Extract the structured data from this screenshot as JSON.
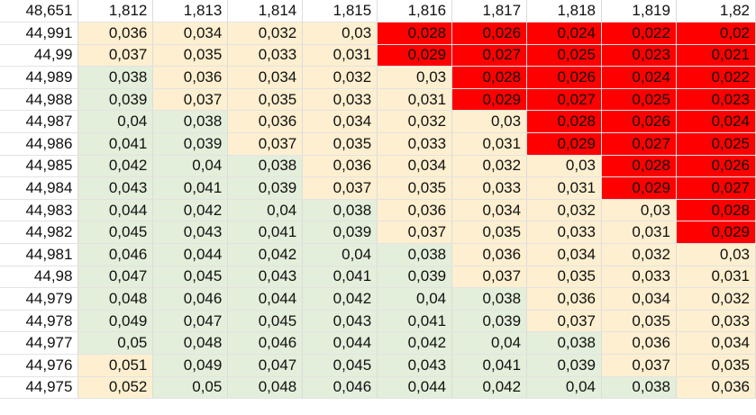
{
  "palette": {
    "green": "#e3eedb",
    "yellow": "#fdefcf",
    "red": "#fe0000",
    "corner": "#9fd08a"
  },
  "corner_value": "48,651",
  "col_headers": [
    "1,812",
    "1,813",
    "1,814",
    "1,815",
    "1,816",
    "1,817",
    "1,818",
    "1,819",
    "1,82"
  ],
  "rows": [
    {
      "label": "44,991",
      "cells": [
        {
          "v": "0,036",
          "c": "yellow"
        },
        {
          "v": "0,034",
          "c": "yellow"
        },
        {
          "v": "0,032",
          "c": "yellow"
        },
        {
          "v": "0,03",
          "c": "yellow"
        },
        {
          "v": "0,028",
          "c": "red"
        },
        {
          "v": "0,026",
          "c": "red"
        },
        {
          "v": "0,024",
          "c": "red"
        },
        {
          "v": "0,022",
          "c": "red"
        },
        {
          "v": "0,02",
          "c": "red"
        }
      ]
    },
    {
      "label": "44,99",
      "cells": [
        {
          "v": "0,037",
          "c": "yellow"
        },
        {
          "v": "0,035",
          "c": "yellow"
        },
        {
          "v": "0,033",
          "c": "yellow"
        },
        {
          "v": "0,031",
          "c": "yellow"
        },
        {
          "v": "0,029",
          "c": "red"
        },
        {
          "v": "0,027",
          "c": "red"
        },
        {
          "v": "0,025",
          "c": "red"
        },
        {
          "v": "0,023",
          "c": "red"
        },
        {
          "v": "0,021",
          "c": "red"
        }
      ]
    },
    {
      "label": "44,989",
      "cells": [
        {
          "v": "0,038",
          "c": "green"
        },
        {
          "v": "0,036",
          "c": "yellow"
        },
        {
          "v": "0,034",
          "c": "yellow"
        },
        {
          "v": "0,032",
          "c": "yellow"
        },
        {
          "v": "0,03",
          "c": "yellow"
        },
        {
          "v": "0,028",
          "c": "red"
        },
        {
          "v": "0,026",
          "c": "red"
        },
        {
          "v": "0,024",
          "c": "red"
        },
        {
          "v": "0,022",
          "c": "red"
        }
      ]
    },
    {
      "label": "44,988",
      "cells": [
        {
          "v": "0,039",
          "c": "green"
        },
        {
          "v": "0,037",
          "c": "yellow"
        },
        {
          "v": "0,035",
          "c": "yellow"
        },
        {
          "v": "0,033",
          "c": "yellow"
        },
        {
          "v": "0,031",
          "c": "yellow"
        },
        {
          "v": "0,029",
          "c": "red"
        },
        {
          "v": "0,027",
          "c": "red"
        },
        {
          "v": "0,025",
          "c": "red"
        },
        {
          "v": "0,023",
          "c": "red"
        }
      ]
    },
    {
      "label": "44,987",
      "cells": [
        {
          "v": "0,04",
          "c": "green"
        },
        {
          "v": "0,038",
          "c": "green"
        },
        {
          "v": "0,036",
          "c": "yellow"
        },
        {
          "v": "0,034",
          "c": "yellow"
        },
        {
          "v": "0,032",
          "c": "yellow"
        },
        {
          "v": "0,03",
          "c": "yellow"
        },
        {
          "v": "0,028",
          "c": "red"
        },
        {
          "v": "0,026",
          "c": "red"
        },
        {
          "v": "0,024",
          "c": "red"
        }
      ]
    },
    {
      "label": "44,986",
      "cells": [
        {
          "v": "0,041",
          "c": "green"
        },
        {
          "v": "0,039",
          "c": "green"
        },
        {
          "v": "0,037",
          "c": "yellow"
        },
        {
          "v": "0,035",
          "c": "yellow"
        },
        {
          "v": "0,033",
          "c": "yellow"
        },
        {
          "v": "0,031",
          "c": "yellow"
        },
        {
          "v": "0,029",
          "c": "red"
        },
        {
          "v": "0,027",
          "c": "red"
        },
        {
          "v": "0,025",
          "c": "red"
        }
      ]
    },
    {
      "label": "44,985",
      "cells": [
        {
          "v": "0,042",
          "c": "green"
        },
        {
          "v": "0,04",
          "c": "green"
        },
        {
          "v": "0,038",
          "c": "green"
        },
        {
          "v": "0,036",
          "c": "yellow"
        },
        {
          "v": "0,034",
          "c": "yellow"
        },
        {
          "v": "0,032",
          "c": "yellow"
        },
        {
          "v": "0,03",
          "c": "yellow"
        },
        {
          "v": "0,028",
          "c": "red"
        },
        {
          "v": "0,026",
          "c": "red"
        }
      ]
    },
    {
      "label": "44,984",
      "cells": [
        {
          "v": "0,043",
          "c": "green"
        },
        {
          "v": "0,041",
          "c": "green"
        },
        {
          "v": "0,039",
          "c": "green"
        },
        {
          "v": "0,037",
          "c": "yellow"
        },
        {
          "v": "0,035",
          "c": "yellow"
        },
        {
          "v": "0,033",
          "c": "yellow"
        },
        {
          "v": "0,031",
          "c": "yellow"
        },
        {
          "v": "0,029",
          "c": "red"
        },
        {
          "v": "0,027",
          "c": "red"
        }
      ]
    },
    {
      "label": "44,983",
      "cells": [
        {
          "v": "0,044",
          "c": "green"
        },
        {
          "v": "0,042",
          "c": "green"
        },
        {
          "v": "0,04",
          "c": "green"
        },
        {
          "v": "0,038",
          "c": "green"
        },
        {
          "v": "0,036",
          "c": "yellow"
        },
        {
          "v": "0,034",
          "c": "yellow"
        },
        {
          "v": "0,032",
          "c": "yellow"
        },
        {
          "v": "0,03",
          "c": "yellow"
        },
        {
          "v": "0,028",
          "c": "red"
        }
      ]
    },
    {
      "label": "44,982",
      "cells": [
        {
          "v": "0,045",
          "c": "green"
        },
        {
          "v": "0,043",
          "c": "green"
        },
        {
          "v": "0,041",
          "c": "green"
        },
        {
          "v": "0,039",
          "c": "green"
        },
        {
          "v": "0,037",
          "c": "yellow"
        },
        {
          "v": "0,035",
          "c": "yellow"
        },
        {
          "v": "0,033",
          "c": "yellow"
        },
        {
          "v": "0,031",
          "c": "yellow"
        },
        {
          "v": "0,029",
          "c": "red"
        }
      ]
    },
    {
      "label": "44,981",
      "cells": [
        {
          "v": "0,046",
          "c": "green"
        },
        {
          "v": "0,044",
          "c": "green"
        },
        {
          "v": "0,042",
          "c": "green"
        },
        {
          "v": "0,04",
          "c": "green"
        },
        {
          "v": "0,038",
          "c": "green"
        },
        {
          "v": "0,036",
          "c": "yellow"
        },
        {
          "v": "0,034",
          "c": "yellow"
        },
        {
          "v": "0,032",
          "c": "yellow"
        },
        {
          "v": "0,03",
          "c": "yellow"
        }
      ]
    },
    {
      "label": "44,98",
      "cells": [
        {
          "v": "0,047",
          "c": "green"
        },
        {
          "v": "0,045",
          "c": "green"
        },
        {
          "v": "0,043",
          "c": "green"
        },
        {
          "v": "0,041",
          "c": "green"
        },
        {
          "v": "0,039",
          "c": "green"
        },
        {
          "v": "0,037",
          "c": "yellow"
        },
        {
          "v": "0,035",
          "c": "yellow"
        },
        {
          "v": "0,033",
          "c": "yellow"
        },
        {
          "v": "0,031",
          "c": "yellow"
        }
      ]
    },
    {
      "label": "44,979",
      "cells": [
        {
          "v": "0,048",
          "c": "green"
        },
        {
          "v": "0,046",
          "c": "green"
        },
        {
          "v": "0,044",
          "c": "green"
        },
        {
          "v": "0,042",
          "c": "green"
        },
        {
          "v": "0,04",
          "c": "green"
        },
        {
          "v": "0,038",
          "c": "green"
        },
        {
          "v": "0,036",
          "c": "yellow"
        },
        {
          "v": "0,034",
          "c": "yellow"
        },
        {
          "v": "0,032",
          "c": "yellow"
        }
      ]
    },
    {
      "label": "44,978",
      "cells": [
        {
          "v": "0,049",
          "c": "green"
        },
        {
          "v": "0,047",
          "c": "green"
        },
        {
          "v": "0,045",
          "c": "green"
        },
        {
          "v": "0,043",
          "c": "green"
        },
        {
          "v": "0,041",
          "c": "green"
        },
        {
          "v": "0,039",
          "c": "green"
        },
        {
          "v": "0,037",
          "c": "yellow"
        },
        {
          "v": "0,035",
          "c": "yellow"
        },
        {
          "v": "0,033",
          "c": "yellow"
        }
      ]
    },
    {
      "label": "44,977",
      "cells": [
        {
          "v": "0,05",
          "c": "green"
        },
        {
          "v": "0,048",
          "c": "green"
        },
        {
          "v": "0,046",
          "c": "green"
        },
        {
          "v": "0,044",
          "c": "green"
        },
        {
          "v": "0,042",
          "c": "green"
        },
        {
          "v": "0,04",
          "c": "green"
        },
        {
          "v": "0,038",
          "c": "green"
        },
        {
          "v": "0,036",
          "c": "yellow"
        },
        {
          "v": "0,034",
          "c": "yellow"
        }
      ]
    },
    {
      "label": "44,976",
      "cells": [
        {
          "v": "0,051",
          "c": "yellow"
        },
        {
          "v": "0,049",
          "c": "green"
        },
        {
          "v": "0,047",
          "c": "green"
        },
        {
          "v": "0,045",
          "c": "green"
        },
        {
          "v": "0,043",
          "c": "green"
        },
        {
          "v": "0,041",
          "c": "green"
        },
        {
          "v": "0,039",
          "c": "green"
        },
        {
          "v": "0,037",
          "c": "yellow"
        },
        {
          "v": "0,035",
          "c": "yellow"
        }
      ]
    },
    {
      "label": "44,975",
      "cells": [
        {
          "v": "0,052",
          "c": "yellow"
        },
        {
          "v": "0,05",
          "c": "green"
        },
        {
          "v": "0,048",
          "c": "green"
        },
        {
          "v": "0,046",
          "c": "green"
        },
        {
          "v": "0,044",
          "c": "green"
        },
        {
          "v": "0,042",
          "c": "green"
        },
        {
          "v": "0,04",
          "c": "green"
        },
        {
          "v": "0,038",
          "c": "green"
        },
        {
          "v": "0,036",
          "c": "yellow"
        }
      ]
    }
  ]
}
